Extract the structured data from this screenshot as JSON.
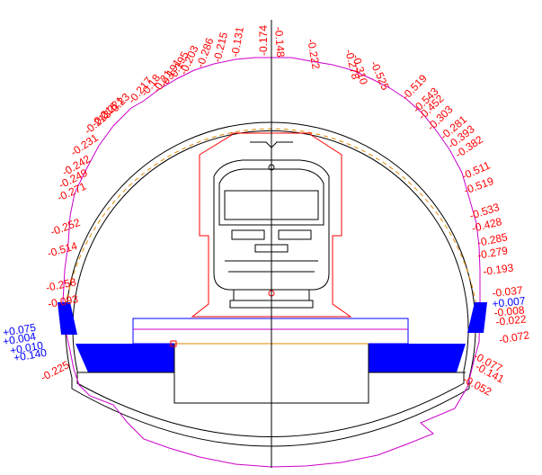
{
  "colors": {
    "background": "#ffffff",
    "structure": "#000000",
    "deviation_text": "#ff0000",
    "positive_text": "#0000ff",
    "clearance_outline": "#ff0000",
    "lining_fill": "#0000ff",
    "measured_profile": "#cc00cc",
    "design_dashed": "#e38a00",
    "rail_line": "#e38a00",
    "slab_outline": "#0000ff"
  },
  "deviation_labels": [
    {
      "text": "-0.174",
      "color": "red"
    },
    {
      "text": "-0.131",
      "color": "red"
    },
    {
      "text": "-0.215",
      "color": "red"
    },
    {
      "text": "-0.286",
      "color": "red"
    },
    {
      "text": "-0.203",
      "color": "red"
    },
    {
      "text": "-0.195",
      "color": "red"
    },
    {
      "text": "-0.191",
      "color": "red"
    },
    {
      "text": "-0.21",
      "color": "red"
    },
    {
      "text": "-0.18",
      "color": "red"
    },
    {
      "text": "-0.217",
      "color": "red"
    },
    {
      "text": "-0.23",
      "color": "red"
    },
    {
      "text": "-0.221",
      "color": "red"
    },
    {
      "text": "-0.216",
      "color": "red"
    },
    {
      "text": "-0.213",
      "color": "red"
    },
    {
      "text": "-0.231",
      "color": "red"
    },
    {
      "text": "-0.242",
      "color": "red"
    },
    {
      "text": "-0.249",
      "color": "red"
    },
    {
      "text": "-0.271",
      "color": "red"
    },
    {
      "text": "-0.252",
      "color": "red"
    },
    {
      "text": "-0.514",
      "color": "red"
    },
    {
      "text": "-0.258",
      "color": "red"
    },
    {
      "text": "-0.093",
      "color": "red"
    },
    {
      "text": "+0.075",
      "color": "blue"
    },
    {
      "text": "+0.004",
      "color": "blue"
    },
    {
      "text": "+0.010",
      "color": "blue"
    },
    {
      "text": "+0.140",
      "color": "blue"
    },
    {
      "text": "-0.225",
      "color": "red"
    },
    {
      "text": "-0.148",
      "color": "red"
    },
    {
      "text": "-0.222",
      "color": "red"
    },
    {
      "text": "-0.278",
      "color": "red"
    },
    {
      "text": "-0.310",
      "color": "red"
    },
    {
      "text": "-0.525",
      "color": "red"
    },
    {
      "text": "-0.519",
      "color": "red"
    },
    {
      "text": "-0.543",
      "color": "red"
    },
    {
      "text": "-0.452",
      "color": "red"
    },
    {
      "text": "-0.303",
      "color": "red"
    },
    {
      "text": "-0.281",
      "color": "red"
    },
    {
      "text": "-0.393",
      "color": "red"
    },
    {
      "text": "-0.382",
      "color": "red"
    },
    {
      "text": "-0.511",
      "color": "red"
    },
    {
      "text": "-0.519",
      "color": "red"
    },
    {
      "text": "-0.533",
      "color": "red"
    },
    {
      "text": "-0.428",
      "color": "red"
    },
    {
      "text": "-0.285",
      "color": "red"
    },
    {
      "text": "-0.279",
      "color": "red"
    },
    {
      "text": "-0.193",
      "color": "red"
    },
    {
      "text": "-0.037",
      "color": "red"
    },
    {
      "text": "+0.007",
      "color": "blue"
    },
    {
      "text": "-0.008",
      "color": "red"
    },
    {
      "text": "-0.022",
      "color": "red"
    },
    {
      "text": "-0.072",
      "color": "red"
    },
    {
      "text": "-0.077",
      "color": "red"
    },
    {
      "text": "-0.141",
      "color": "red"
    },
    {
      "text": "-0.052",
      "color": "red"
    }
  ]
}
